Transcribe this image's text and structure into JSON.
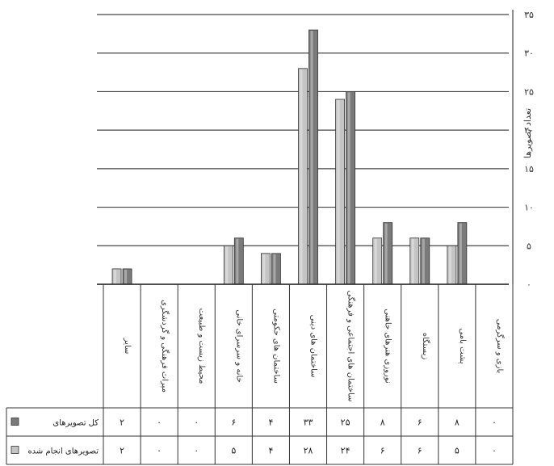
{
  "chart_data": {
    "type": "bar",
    "categories": [
      "بازی و سرگرمی",
      "پشت بامی",
      "زیستگاه",
      "نوروزی هنرهای جاهنی",
      "ساختمان های اجتماعی و فرهنگی",
      "ساختمان های دینی",
      "ساختمان های حکومتی",
      "خانه و سرسرای خانی",
      "محیط زیست و طبیعت",
      "میراث فرهنگی و گردشگری",
      "سایر"
    ],
    "series": [
      {
        "name": "کل تصویرهای",
        "values": [
          0,
          8,
          6,
          8,
          25,
          33,
          4,
          6,
          0,
          0,
          2
        ],
        "color": "#7a7a7a"
      },
      {
        "name": "تصویرهای انجام شده",
        "values": [
          0,
          5,
          6,
          6,
          24,
          28,
          4,
          5,
          0,
          0,
          2
        ],
        "color": "#c4c4c4"
      }
    ],
    "table_rows": [
      {
        "label": "کل تصویرهای",
        "cells": [
          "۰",
          "۸",
          "۶",
          "۸",
          "۲۵",
          "۳۳",
          "۴",
          "۶",
          "۰",
          "۰",
          "۲"
        ]
      },
      {
        "label": "تصویرهای انجام شده",
        "cells": [
          "۰",
          "۵",
          "۶",
          "۶",
          "۲۴",
          "۲۸",
          "۴",
          "۵",
          "۰",
          "۰",
          "۲"
        ]
      }
    ],
    "y_ticks": [
      "۰",
      "۵",
      "۱۰",
      "۱۵",
      "۲۰",
      "۲۵",
      "۳۰",
      "۳۵"
    ],
    "ylabel": "تعداد تصویرها",
    "ylim": [
      0,
      35
    ],
    "grid": true
  }
}
